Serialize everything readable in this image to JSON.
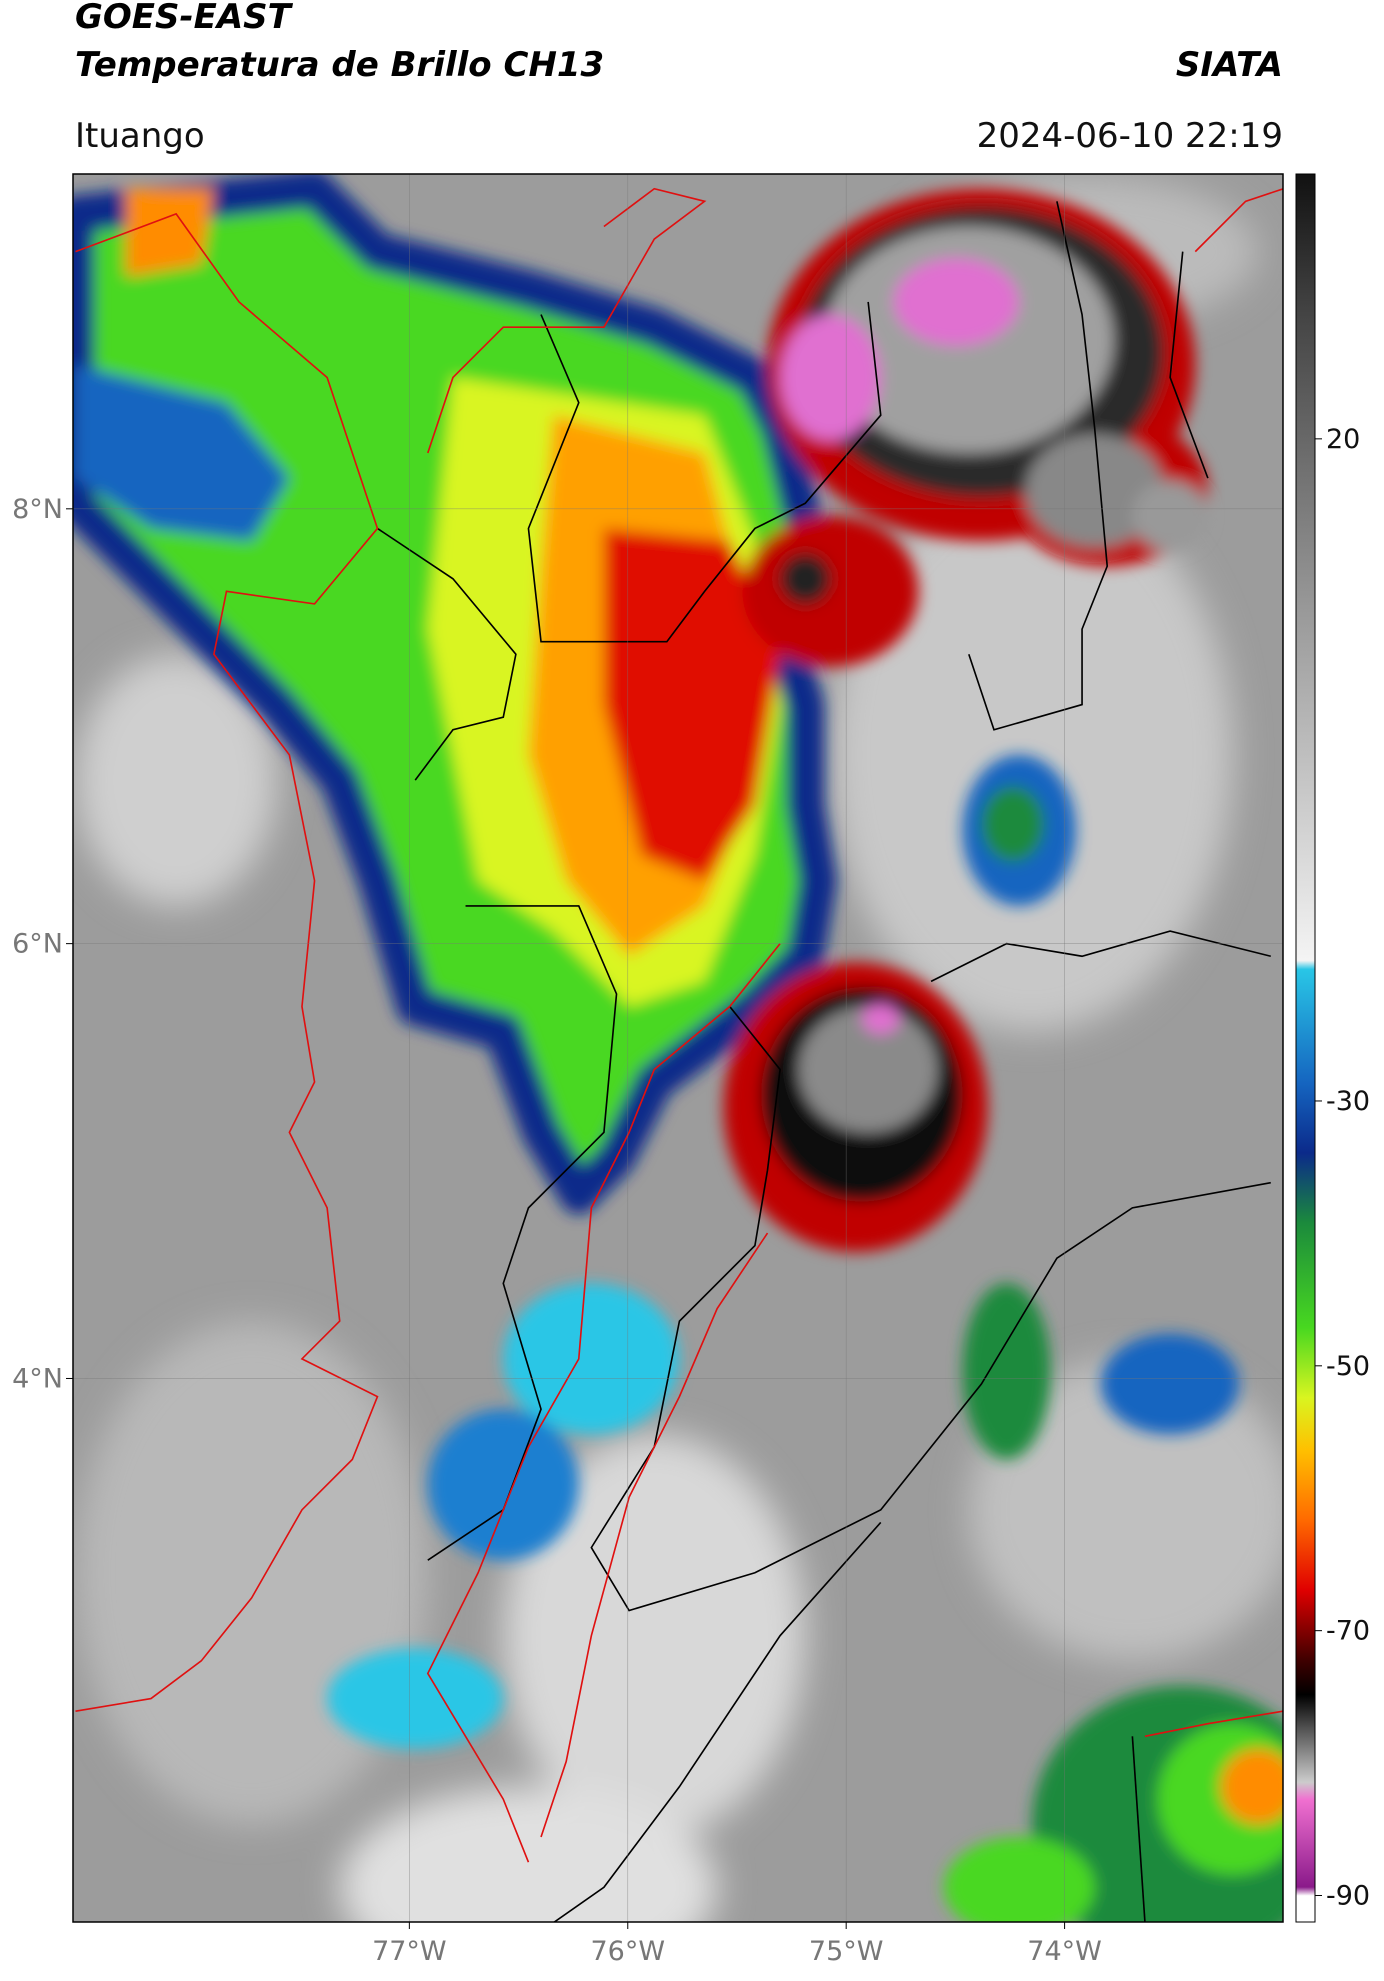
{
  "header": {
    "title": "GOES-EAST",
    "subtitle": "Temperatura de Brillo CH13",
    "source": "SIATA",
    "location": "Ituango",
    "datetime": "2024-06-10 22:19"
  },
  "map": {
    "lonlim": [
      -78.54,
      -73.0
    ],
    "latlim": [
      1.5,
      9.54
    ],
    "lat_ticks": [
      {
        "value": 8,
        "label": "8°N"
      },
      {
        "value": 6,
        "label": "6°N"
      },
      {
        "value": 4,
        "label": "4°N"
      }
    ],
    "lon_ticks": [
      {
        "value": -77,
        "label": "77°W"
      },
      {
        "value": -76,
        "label": "76°W"
      },
      {
        "value": -75,
        "label": "75°W"
      },
      {
        "value": -74,
        "label": "74°W"
      }
    ],
    "grid": true
  },
  "colorbar": {
    "lim": [
      -92,
      40
    ],
    "ticks": [
      20,
      -30,
      -50,
      -70,
      -90
    ]
  }
}
